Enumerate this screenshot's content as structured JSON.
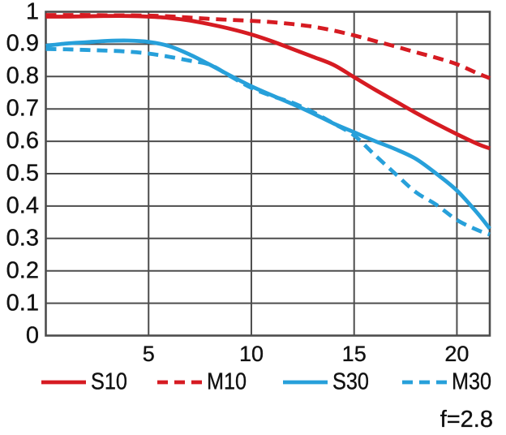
{
  "chart_data": {
    "type": "line",
    "title": "",
    "xlabel": "",
    "ylabel": "",
    "xlim": [
      0,
      21.6
    ],
    "ylim": [
      0,
      1
    ],
    "xticks": [
      5,
      10,
      15,
      20
    ],
    "xtick_labels": [
      "5",
      "10",
      "15",
      "20"
    ],
    "yticks": [
      0,
      0.1,
      0.2,
      0.3,
      0.4,
      0.5,
      0.6,
      0.7,
      0.8,
      0.9,
      1
    ],
    "ytick_labels": [
      "0",
      "0.1",
      "0.2",
      "0.3",
      "0.4",
      "0.5",
      "0.6",
      "0.7",
      "0.8",
      "0.9",
      "1"
    ],
    "grid": true,
    "legend_position": "bottom",
    "annotation": "f=2.8",
    "colors": {
      "red": "#d61b22",
      "blue": "#27a0da",
      "grid": "#4d4d4d",
      "text": "#111111",
      "background": "#ffffff"
    },
    "series": [
      {
        "name": "S10",
        "color": "red",
        "style": "solid",
        "x": [
          0,
          1,
          2,
          3,
          4,
          5,
          6,
          7,
          8,
          9,
          10,
          11,
          12,
          13,
          14,
          15,
          16,
          17,
          18,
          19,
          20,
          21,
          21.6
        ],
        "y": [
          0.985,
          0.985,
          0.986,
          0.987,
          0.987,
          0.985,
          0.981,
          0.973,
          0.961,
          0.947,
          0.93,
          0.909,
          0.885,
          0.861,
          0.836,
          0.798,
          0.76,
          0.724,
          0.688,
          0.654,
          0.622,
          0.592,
          0.578
        ]
      },
      {
        "name": "M10",
        "color": "red",
        "style": "dashed",
        "x": [
          0,
          1,
          2,
          3,
          4,
          5,
          6,
          7,
          8,
          9,
          10,
          11,
          12,
          13,
          14,
          15,
          16,
          17,
          18,
          19,
          20,
          21,
          21.6
        ],
        "y": [
          0.99,
          0.99,
          0.99,
          0.989,
          0.989,
          0.988,
          0.986,
          0.982,
          0.978,
          0.975,
          0.972,
          0.968,
          0.962,
          0.954,
          0.942,
          0.927,
          0.91,
          0.893,
          0.875,
          0.858,
          0.838,
          0.81,
          0.795
        ]
      },
      {
        "name": "S30",
        "color": "blue",
        "style": "solid",
        "x": [
          0,
          1,
          2,
          3,
          4,
          5,
          6,
          7,
          8,
          9,
          10,
          11,
          12,
          13,
          14,
          15,
          16,
          17,
          18,
          19,
          20,
          21,
          21.6
        ],
        "y": [
          0.895,
          0.902,
          0.906,
          0.91,
          0.911,
          0.907,
          0.894,
          0.868,
          0.836,
          0.802,
          0.77,
          0.742,
          0.715,
          0.686,
          0.655,
          0.628,
          0.601,
          0.576,
          0.546,
          0.5,
          0.448,
          0.378,
          0.33
        ]
      },
      {
        "name": "M30",
        "color": "blue",
        "style": "dashed",
        "x": [
          0,
          1,
          2,
          3,
          4,
          5,
          6,
          7,
          8,
          9,
          10,
          11,
          12,
          13,
          14,
          15,
          16,
          17,
          18,
          19,
          20,
          21,
          21.6
        ],
        "y": [
          0.885,
          0.884,
          0.882,
          0.88,
          0.877,
          0.871,
          0.861,
          0.849,
          0.836,
          0.8,
          0.765,
          0.74,
          0.719,
          0.69,
          0.655,
          0.618,
          0.558,
          0.5,
          0.443,
          0.404,
          0.357,
          0.326,
          0.312
        ]
      }
    ]
  }
}
